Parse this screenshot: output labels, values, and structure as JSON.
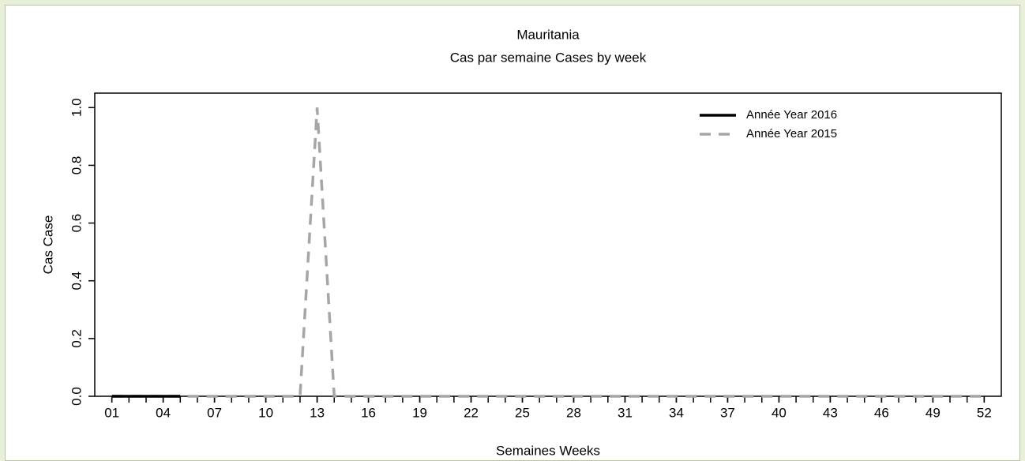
{
  "chart_data": {
    "type": "line",
    "title": "Mauritania",
    "subtitle": "Cas par semaine Cases by week",
    "xlabel": "Semaines Weeks",
    "ylabel": "Cas Case",
    "x": [
      1,
      2,
      3,
      4,
      5,
      6,
      7,
      8,
      9,
      10,
      11,
      12,
      13,
      14,
      15,
      16,
      17,
      18,
      19,
      20,
      21,
      22,
      23,
      24,
      25,
      26,
      27,
      28,
      29,
      30,
      31,
      32,
      33,
      34,
      35,
      36,
      37,
      38,
      39,
      40,
      41,
      42,
      43,
      44,
      45,
      46,
      47,
      48,
      49,
      50,
      51,
      52
    ],
    "series": [
      {
        "name": "Année Year 2016",
        "color": "#000000",
        "dash": false,
        "values": [
          0,
          0,
          0,
          0,
          0,
          null,
          null,
          null,
          null,
          null,
          null,
          null,
          null,
          null,
          null,
          null,
          null,
          null,
          null,
          null,
          null,
          null,
          null,
          null,
          null,
          null,
          null,
          null,
          null,
          null,
          null,
          null,
          null,
          null,
          null,
          null,
          null,
          null,
          null,
          null,
          null,
          null,
          null,
          null,
          null,
          null,
          null,
          null,
          null,
          null,
          null,
          null
        ]
      },
      {
        "name": "Année Year 2015",
        "color": "#a6a6a6",
        "dash": true,
        "values": [
          0,
          0,
          0,
          0,
          0,
          0,
          0,
          0,
          0,
          0,
          0,
          0,
          1,
          0,
          0,
          0,
          0,
          0,
          0,
          0,
          0,
          0,
          0,
          0,
          0,
          0,
          0,
          0,
          0,
          0,
          0,
          0,
          0,
          0,
          0,
          0,
          0,
          0,
          0,
          0,
          0,
          0,
          0,
          0,
          0,
          0,
          0,
          0,
          0,
          0,
          0,
          0
        ]
      }
    ],
    "xlim": [
      0,
      53
    ],
    "ylim": [
      0,
      1.05
    ],
    "xticks": [
      {
        "value": 1,
        "label": "01"
      },
      {
        "value": 4,
        "label": "04"
      },
      {
        "value": 7,
        "label": "07"
      },
      10,
      13,
      16,
      19,
      22,
      25,
      28,
      31,
      34,
      37,
      40,
      43,
      46,
      49,
      52
    ],
    "xminorticks": [
      1,
      2,
      3,
      4,
      5,
      6,
      7,
      8,
      9,
      10,
      11,
      12,
      13,
      14,
      15,
      16,
      17,
      18,
      19,
      20,
      21,
      22,
      23,
      24,
      25,
      26,
      27,
      28,
      29,
      30,
      31,
      32,
      33,
      34,
      35,
      36,
      37,
      38,
      39,
      40,
      41,
      42,
      43,
      44,
      45,
      46,
      47,
      48,
      49,
      50,
      51,
      52
    ],
    "yticks": [
      {
        "value": 0,
        "label": "0.0"
      },
      0.2,
      0.4,
      0.6,
      0.8,
      {
        "value": 1,
        "label": "1.0"
      }
    ],
    "legend": "top-right"
  }
}
